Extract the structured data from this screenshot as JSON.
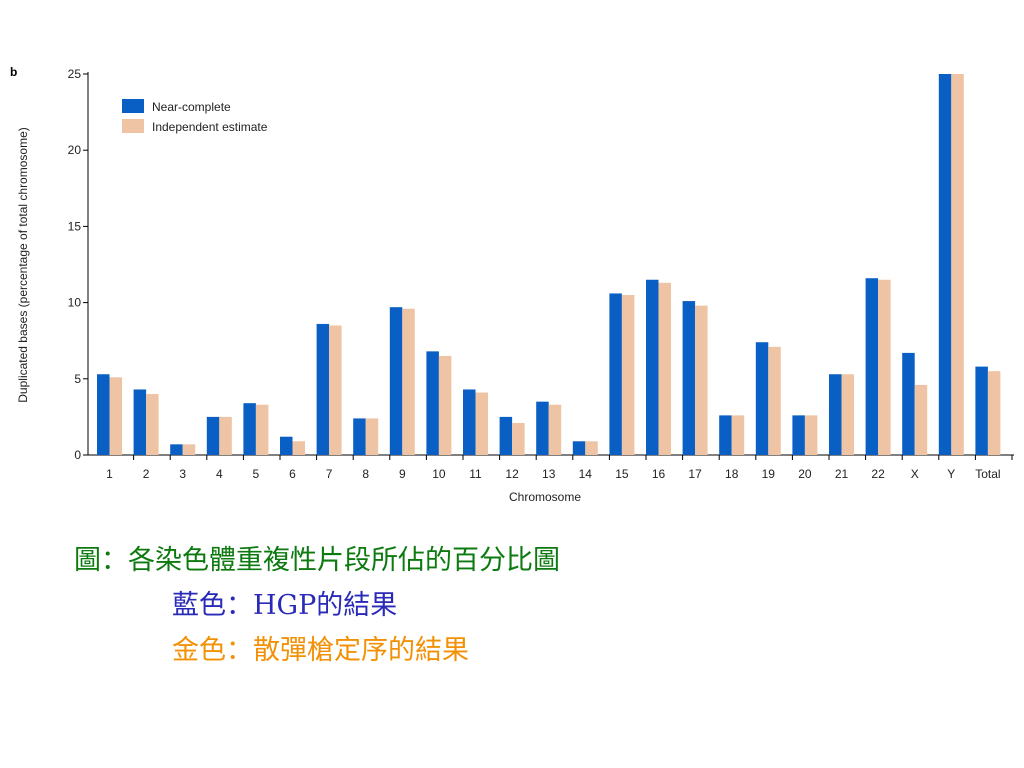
{
  "panel_label": "b",
  "colors": {
    "series_1": "#0a5fc4",
    "series_2": "#eec4a4",
    "caption_line_1": "#0d7a10",
    "caption_line_2": "#2a2ab8",
    "caption_line_3": "#f39106"
  },
  "caption": {
    "line1": "圖：各染色體重複性片段所佔的百分比圖",
    "line2": "藍色：HGP的結果",
    "line3": "金色：散彈槍定序的結果"
  },
  "chart_data": {
    "type": "bar",
    "title": "",
    "xlabel": "Chromosome",
    "ylabel": "Duplicated bases (percentage of total chromosome)",
    "ylim": [
      0,
      25
    ],
    "yticks": [
      0,
      5,
      10,
      15,
      20,
      25
    ],
    "grid": false,
    "legend_position": "top-left",
    "categories": [
      "1",
      "2",
      "3",
      "4",
      "5",
      "6",
      "7",
      "8",
      "9",
      "10",
      "11",
      "12",
      "13",
      "14",
      "15",
      "16",
      "17",
      "18",
      "19",
      "20",
      "21",
      "22",
      "X",
      "Y",
      "Total"
    ],
    "series": [
      {
        "name": "Near-complete",
        "values": [
          5.3,
          4.3,
          0.7,
          2.5,
          3.4,
          1.2,
          8.6,
          2.4,
          9.7,
          6.8,
          4.3,
          2.5,
          3.5,
          0.9,
          10.6,
          11.5,
          10.1,
          2.6,
          7.4,
          2.6,
          5.3,
          11.6,
          6.7,
          25.0,
          5.8
        ]
      },
      {
        "name": "Independent estimate",
        "values": [
          5.1,
          4.0,
          0.7,
          2.5,
          3.3,
          0.9,
          8.5,
          2.4,
          9.6,
          6.5,
          4.1,
          2.1,
          3.3,
          0.9,
          10.5,
          11.3,
          9.8,
          2.6,
          7.1,
          2.6,
          5.3,
          11.5,
          4.6,
          25.0,
          5.5
        ]
      }
    ]
  }
}
